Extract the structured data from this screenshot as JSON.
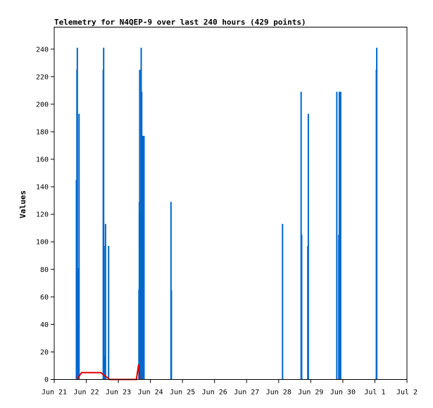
{
  "chart_data": {
    "type": "bar",
    "title": "Telemetry for N4QEP-9 over last 240 hours (429 points)",
    "xlabel": "",
    "ylabel": "Values",
    "ylim": [
      0,
      256
    ],
    "yticks": [
      0,
      20,
      40,
      60,
      80,
      100,
      120,
      140,
      160,
      180,
      200,
      220,
      240
    ],
    "xlim_hours": [
      0,
      264
    ],
    "xticks": [
      {
        "label": "Jun 21",
        "hour": 0
      },
      {
        "label": "Jun 22",
        "hour": 24
      },
      {
        "label": "Jun 23",
        "hour": 48
      },
      {
        "label": "Jun 24",
        "hour": 72
      },
      {
        "label": "Jun 25",
        "hour": 96
      },
      {
        "label": "Jun 26",
        "hour": 120
      },
      {
        "label": "Jun 27",
        "hour": 144
      },
      {
        "label": "Jun 28",
        "hour": 168
      },
      {
        "label": "Jun 29",
        "hour": 192
      },
      {
        "label": "Jun 30",
        "hour": 216
      },
      {
        "label": "Jul 1",
        "hour": 240
      },
      {
        "label": "Jul 2",
        "hour": 264
      }
    ],
    "grid": false,
    "series": [
      {
        "color": "#0066cc",
        "style": "bars",
        "points": [
          [
            16.6,
            145
          ],
          [
            17.0,
            225
          ],
          [
            17.3,
            241
          ],
          [
            17.6,
            16
          ],
          [
            18.0,
            41
          ],
          [
            18.3,
            81
          ],
          [
            18.6,
            193
          ],
          [
            36.7,
            225
          ],
          [
            37.0,
            241
          ],
          [
            37.3,
            97
          ],
          [
            37.8,
            17
          ],
          [
            38.4,
            113
          ],
          [
            40.7,
            97
          ],
          [
            63.4,
            65
          ],
          [
            63.7,
            129
          ],
          [
            64.0,
            225
          ],
          [
            64.3,
            65
          ],
          [
            64.8,
            121
          ],
          [
            65.1,
            241
          ],
          [
            65.5,
            209
          ],
          [
            65.8,
            89
          ],
          [
            66.2,
            177
          ],
          [
            66.6,
            97
          ],
          [
            67.2,
            177
          ],
          [
            87.4,
            129
          ],
          [
            87.7,
            65
          ],
          [
            170.9,
            113
          ],
          [
            184.8,
            209
          ],
          [
            185.2,
            105
          ],
          [
            189.8,
            97
          ],
          [
            190.2,
            193
          ],
          [
            211.5,
            209
          ],
          [
            213.0,
            105
          ],
          [
            213.4,
            209
          ],
          [
            214.4,
            209
          ],
          [
            241.1,
            225
          ],
          [
            241.4,
            241
          ]
        ]
      },
      {
        "color": "#dd0000",
        "style": "line",
        "points": [
          [
            17.0,
            0
          ],
          [
            20.5,
            5
          ],
          [
            34.8,
            5
          ],
          [
            41.5,
            0
          ],
          [
            61.5,
            0
          ],
          [
            63.2,
            11
          ],
          [
            64.0,
            0
          ]
        ]
      },
      {
        "color": "#000000",
        "style": "baseline",
        "points": [
          [
            16.6,
            0
          ],
          [
            258.7,
            0
          ]
        ]
      }
    ]
  }
}
